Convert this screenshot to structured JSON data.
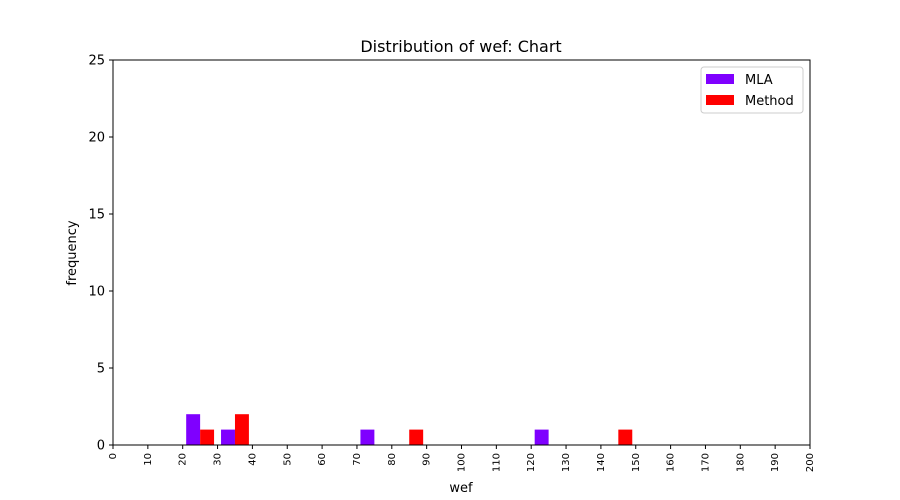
{
  "chart_data": {
    "type": "bar",
    "title": "Distribution of wef: Chart",
    "xlabel": "wef",
    "ylabel": "frequency",
    "xlim": [
      0,
      200
    ],
    "ylim": [
      0,
      25
    ],
    "x_ticks": [
      "0",
      "10",
      "20",
      "30",
      "40",
      "50",
      "60",
      "70",
      "80",
      "90",
      "100",
      "110",
      "120",
      "130",
      "140",
      "150",
      "160",
      "170",
      "180",
      "190",
      "200"
    ],
    "y_ticks": [
      "0",
      "5",
      "10",
      "15",
      "20",
      "25"
    ],
    "bin_width": 10,
    "grid": false,
    "legend_position": "top-right",
    "series": [
      {
        "name": "MLA",
        "color": "#7f00ff",
        "bins": [
          {
            "bin_start": 20,
            "value": 2
          },
          {
            "bin_start": 30,
            "value": 1
          },
          {
            "bin_start": 70,
            "value": 1
          },
          {
            "bin_start": 120,
            "value": 1
          }
        ]
      },
      {
        "name": "Method",
        "color": "#ff0000",
        "bins": [
          {
            "bin_start": 20,
            "value": 1
          },
          {
            "bin_start": 30,
            "value": 2
          },
          {
            "bin_start": 80,
            "value": 1
          },
          {
            "bin_start": 140,
            "value": 1
          }
        ]
      }
    ]
  }
}
